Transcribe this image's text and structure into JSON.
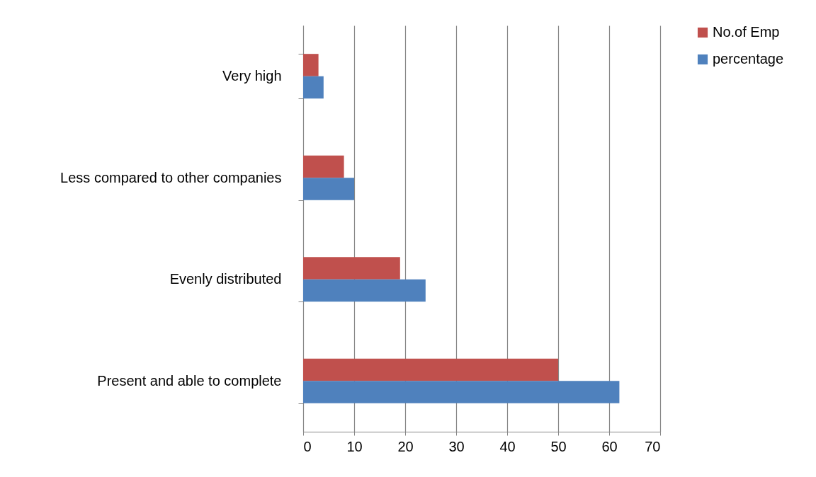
{
  "chart_data": {
    "type": "bar",
    "orientation": "horizontal",
    "categories": [
      "Very high",
      "Less compared to other companies",
      "Evenly distributed",
      "Present and able to complete"
    ],
    "series": [
      {
        "name": "No.of Emp",
        "color": "#c0504d",
        "values": [
          3,
          8,
          19,
          50
        ]
      },
      {
        "name": "percentage",
        "color": "#4f81bd",
        "values": [
          4,
          10,
          24,
          62
        ]
      }
    ],
    "xlim": [
      0,
      70
    ],
    "xticks": [
      0,
      10,
      20,
      30,
      40,
      50,
      60,
      70
    ],
    "grid": "x",
    "legend": "right"
  }
}
